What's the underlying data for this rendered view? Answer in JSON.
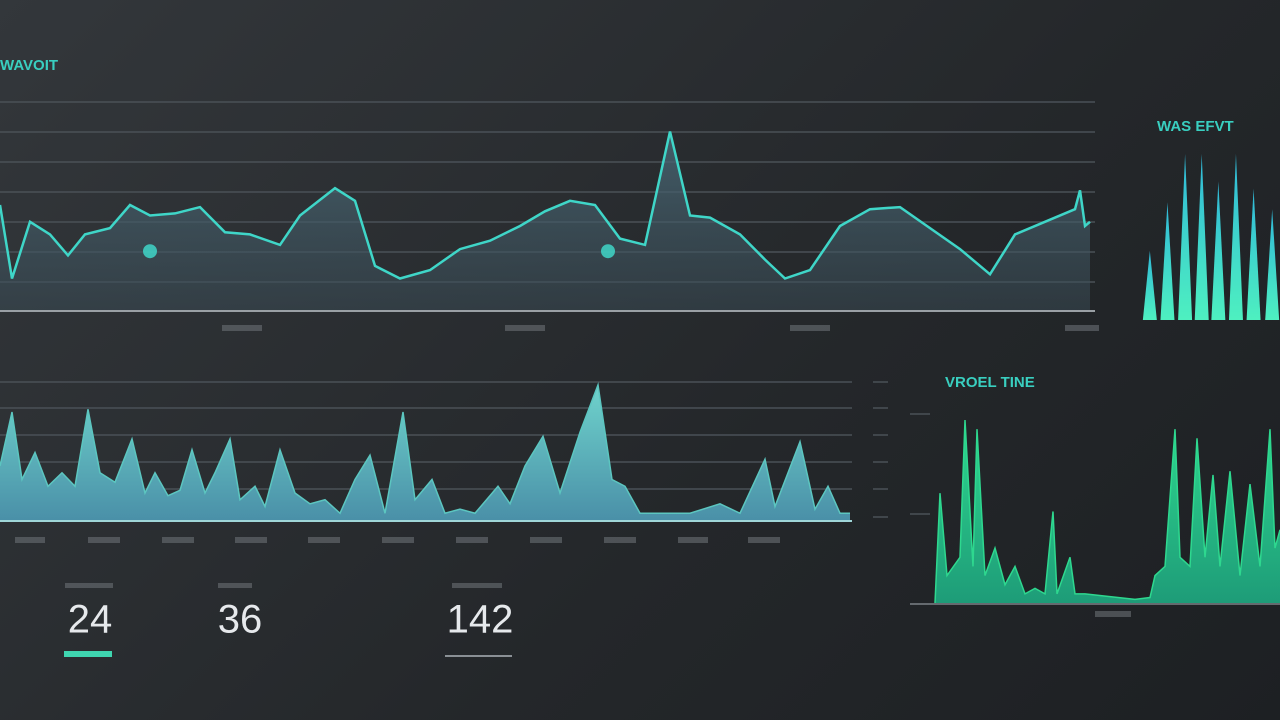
{
  "chart_data": [
    {
      "type": "area",
      "title": "WAVOIT",
      "color": "#3fd6c8",
      "x": [
        0,
        12,
        30,
        50,
        68,
        85,
        110,
        130,
        150,
        175,
        200,
        225,
        250,
        280,
        300,
        335,
        355,
        375,
        400,
        430,
        460,
        490,
        520,
        545,
        570,
        595,
        620,
        645,
        670,
        690,
        710,
        740,
        765,
        785,
        810,
        840,
        870,
        900,
        930,
        960,
        990,
        1015,
        1050,
        1075,
        1080,
        1085,
        1090
      ],
      "values": [
        50,
        15,
        42,
        36,
        26,
        36,
        39,
        50,
        45,
        46,
        49,
        37,
        36,
        31,
        45,
        58,
        52,
        21,
        15,
        19,
        29,
        33,
        40,
        47,
        52,
        50,
        34,
        31,
        85,
        45,
        44,
        36,
        24,
        15,
        19,
        40,
        48,
        49,
        39,
        29,
        17,
        36,
        43,
        48,
        57,
        40,
        42
      ],
      "highlight_x": [
        150,
        608
      ],
      "highlight_values": [
        28,
        28
      ],
      "xlim": [
        0,
        1090
      ],
      "ylim": [
        0,
        100
      ]
    },
    {
      "type": "area",
      "color": "#5cc6c0",
      "x": [
        0,
        12,
        22,
        35,
        48,
        62,
        75,
        88,
        100,
        115,
        132,
        145,
        155,
        168,
        180,
        192,
        205,
        215,
        230,
        240,
        255,
        265,
        280,
        295,
        310,
        325,
        340,
        355,
        370,
        385,
        403,
        415,
        432,
        445,
        460,
        475,
        498,
        510,
        525,
        543,
        560,
        580,
        598,
        612,
        625,
        640,
        660,
        690,
        720,
        740,
        765,
        775,
        800,
        815,
        828,
        840,
        850
      ],
      "values": [
        40,
        80,
        30,
        50,
        25,
        35,
        25,
        82,
        35,
        28,
        60,
        20,
        35,
        18,
        22,
        52,
        20,
        35,
        60,
        15,
        25,
        10,
        52,
        20,
        12,
        15,
        5,
        30,
        48,
        5,
        80,
        15,
        30,
        5,
        8,
        5,
        25,
        12,
        40,
        62,
        20,
        65,
        100,
        30,
        25,
        5,
        5,
        5,
        12,
        5,
        45,
        10,
        58,
        8,
        25,
        5,
        5
      ],
      "xlim": [
        0,
        850
      ],
      "ylim": [
        0,
        100
      ]
    },
    {
      "type": "bar",
      "title": "WAS EFVT",
      "color": "#3fe0d0",
      "x": [
        7,
        25,
        43,
        60,
        77,
        95,
        113,
        132
      ],
      "values": [
        50,
        85,
        120,
        120,
        100,
        120,
        95,
        80
      ],
      "xlim": [
        0,
        140
      ],
      "ylim": [
        0,
        130
      ]
    },
    {
      "type": "area",
      "title": "VROEL TINE",
      "color": "#2ed88f",
      "x": [
        0,
        5,
        12,
        25,
        30,
        38,
        42,
        50,
        60,
        70,
        80,
        90,
        100,
        110,
        118,
        122,
        135,
        140,
        150,
        200,
        215,
        220,
        230,
        240,
        245,
        255,
        262,
        270,
        278,
        285,
        295,
        305,
        315,
        325,
        335,
        340,
        345
      ],
      "values": [
        0,
        60,
        15,
        25,
        100,
        20,
        95,
        15,
        30,
        10,
        20,
        5,
        8,
        5,
        50,
        5,
        25,
        5,
        5,
        2,
        3,
        15,
        20,
        95,
        25,
        20,
        90,
        25,
        70,
        20,
        72,
        15,
        65,
        20,
        95,
        30,
        40
      ],
      "xlim": [
        0,
        345
      ],
      "ylim": [
        0,
        100
      ]
    }
  ],
  "stats": [
    "24",
    "36",
    "142"
  ]
}
